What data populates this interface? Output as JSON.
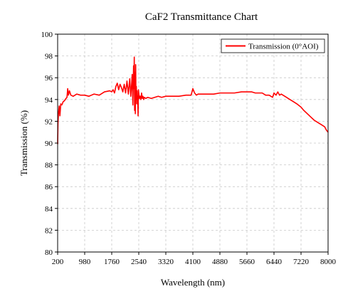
{
  "chart_data": {
    "type": "line",
    "title": "CaF2   Transmittance   Chart",
    "xlabel": "Wavelength (nm)",
    "ylabel": "Transmission (%)",
    "xlim": [
      200,
      8000
    ],
    "ylim": [
      80,
      100
    ],
    "x_ticks": [
      200,
      980,
      1760,
      2540,
      3320,
      4100,
      4880,
      5660,
      6440,
      7220,
      8000
    ],
    "y_ticks": [
      80,
      82,
      84,
      86,
      88,
      90,
      92,
      94,
      96,
      98,
      100
    ],
    "x_tick_labels": [
      "200",
      "980",
      "1760",
      "2540",
      "3320",
      "4100",
      "4880",
      "5660",
      "6440",
      "7220",
      "8000"
    ],
    "y_tick_labels": [
      "80",
      "82",
      "84",
      "86",
      "88",
      "90",
      "92",
      "94",
      "96",
      "98",
      "100"
    ],
    "grid": true,
    "legend_position": "top-right",
    "series": [
      {
        "name": "Transmission (0°AOI)",
        "color": "#ff0000",
        "x": [
          200,
          210,
          225,
          245,
          265,
          290,
          320,
          360,
          400,
          440,
          470,
          490,
          510,
          540,
          580,
          650,
          750,
          860,
          980,
          1100,
          1250,
          1400,
          1550,
          1700,
          1760,
          1800,
          1840,
          1880,
          1920,
          1960,
          2000,
          2040,
          2080,
          2120,
          2160,
          2200,
          2240,
          2280,
          2310,
          2330,
          2350,
          2370,
          2390,
          2400,
          2410,
          2420,
          2430,
          2440,
          2450,
          2460,
          2470,
          2480,
          2490,
          2500,
          2510,
          2520,
          2530,
          2540,
          2560,
          2580,
          2600,
          2620,
          2640,
          2660,
          2680,
          2700,
          2740,
          2800,
          2900,
          3000,
          3100,
          3200,
          3320,
          3500,
          3700,
          3900,
          4050,
          4100,
          4150,
          4200,
          4250,
          4350,
          4500,
          4700,
          4880,
          5100,
          5300,
          5500,
          5660,
          5800,
          5900,
          6000,
          6100,
          6200,
          6300,
          6400,
          6440,
          6500,
          6550,
          6600,
          6650,
          6700,
          6750,
          6800,
          6850,
          6900,
          6950,
          7000,
          7100,
          7220,
          7300,
          7400,
          7500,
          7600,
          7700,
          7800,
          7900,
          7950,
          8000
        ],
        "values": [
          89.9,
          91.8,
          92.8,
          93.4,
          92.5,
          93.6,
          93.5,
          93.8,
          93.9,
          94.1,
          94.2,
          95.0,
          94.4,
          94.8,
          94.4,
          94.3,
          94.5,
          94.4,
          94.4,
          94.3,
          94.5,
          94.4,
          94.7,
          94.8,
          94.7,
          94.9,
          94.6,
          95.2,
          95.5,
          94.9,
          95.4,
          95.1,
          94.7,
          95.4,
          94.6,
          95.7,
          94.5,
          95.9,
          94.3,
          95.2,
          96.3,
          93.5,
          97.1,
          95.0,
          97.9,
          93.0,
          96.5,
          92.7,
          97.2,
          94.0,
          95.2,
          93.6,
          94.8,
          93.8,
          94.2,
          92.5,
          94.9,
          94.6,
          94.1,
          94.3,
          94.0,
          94.6,
          94.1,
          94.3,
          94.0,
          94.2,
          94.1,
          94.2,
          94.1,
          94.2,
          94.3,
          94.2,
          94.3,
          94.3,
          94.3,
          94.4,
          94.4,
          95.0,
          94.6,
          94.4,
          94.5,
          94.5,
          94.5,
          94.5,
          94.6,
          94.6,
          94.6,
          94.7,
          94.7,
          94.7,
          94.6,
          94.6,
          94.6,
          94.4,
          94.4,
          94.2,
          94.6,
          94.4,
          94.7,
          94.4,
          94.5,
          94.4,
          94.3,
          94.2,
          94.1,
          94.0,
          93.9,
          93.8,
          93.6,
          93.3,
          93.0,
          92.7,
          92.4,
          92.1,
          91.9,
          91.7,
          91.5,
          91.2,
          91.0
        ]
      }
    ]
  }
}
